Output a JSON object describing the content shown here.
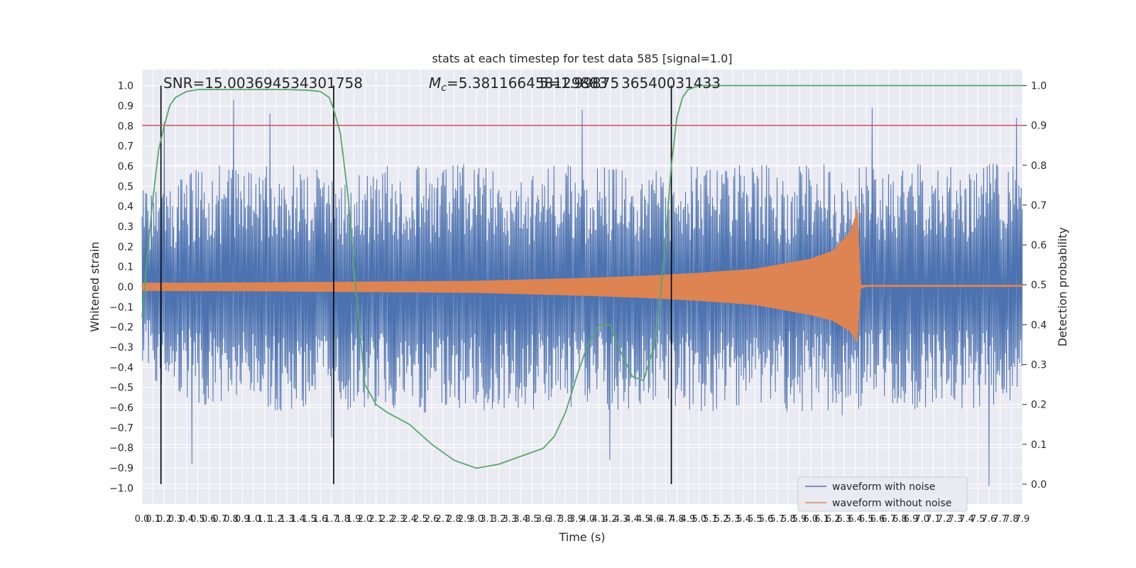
{
  "chart_data": {
    "type": "line",
    "title": "stats at each timestep for test data 585 [signal=1.0]",
    "xlabel": "Time (s)",
    "ylabel": "Whitened strain",
    "ylabel_right": "Detection probability",
    "xlim": [
      0.0,
      7.9
    ],
    "ylim": [
      -1.08,
      1.08
    ],
    "ylim_right": [
      -0.05,
      1.04
    ],
    "x_ticks": [
      0.0,
      0.1,
      0.2,
      0.3,
      0.4,
      0.5,
      0.6,
      0.7,
      0.8,
      0.9,
      1.0,
      1.1,
      1.2,
      1.3,
      1.4,
      1.5,
      1.6,
      1.7,
      1.8,
      1.9,
      2.0,
      2.1,
      2.2,
      2.3,
      2.4,
      2.5,
      2.6,
      2.7,
      2.8,
      2.9,
      3.0,
      3.1,
      3.2,
      3.3,
      3.4,
      3.5,
      3.6,
      3.7,
      3.8,
      3.9,
      4.0,
      4.1,
      4.2,
      4.3,
      4.4,
      4.5,
      4.6,
      4.7,
      4.8,
      4.9,
      5.0,
      5.1,
      5.2,
      5.3,
      5.4,
      5.5,
      5.6,
      5.7,
      5.8,
      5.9,
      6.0,
      6.1,
      6.2,
      6.3,
      6.4,
      6.5,
      6.6,
      6.7,
      6.8,
      6.9,
      7.0,
      7.1,
      7.2,
      7.3,
      7.4,
      7.5,
      7.6,
      7.7,
      7.8,
      7.9
    ],
    "y_ticks": [
      -1.0,
      -0.9,
      -0.8,
      -0.7,
      -0.6,
      -0.5,
      -0.4,
      -0.3,
      -0.2,
      -0.1,
      0.0,
      0.1,
      0.2,
      0.3,
      0.4,
      0.5,
      0.6,
      0.7,
      0.8,
      0.9,
      1.0
    ],
    "y_ticks_right": [
      0.0,
      0.1,
      0.2,
      0.3,
      0.4,
      0.5,
      0.6,
      0.7,
      0.8,
      0.9,
      1.0
    ],
    "grid": true,
    "legend_position": "bottom-right",
    "annotations": {
      "snr": "SNR=15.003694534301758",
      "mc": "M_c=5.381166458129883",
      "third": "5=1.99875",
      "fourth": "36540031433"
    },
    "threshold_line": {
      "y_right": 0.9,
      "color": "#c44e52"
    },
    "vertical_lines": [
      0.17,
      1.72,
      4.75
    ],
    "series": [
      {
        "name": "waveform with noise",
        "color": "#4c72b0",
        "envelope_x": [
          0.0,
          0.3,
          0.6,
          0.9,
          1.2,
          1.5,
          1.8,
          2.1,
          2.4,
          2.7,
          3.0,
          3.3,
          3.6,
          3.9,
          4.2,
          4.5,
          4.8,
          5.1,
          5.4,
          5.7,
          6.0,
          6.3,
          6.6,
          6.9,
          7.2,
          7.5,
          7.9
        ],
        "envelope_upper": [
          0.5,
          0.55,
          0.62,
          0.6,
          0.6,
          0.62,
          0.55,
          0.6,
          0.62,
          0.6,
          0.62,
          0.58,
          0.6,
          0.62,
          0.6,
          0.62,
          0.6,
          0.62,
          0.62,
          0.6,
          0.62,
          0.62,
          0.6,
          0.62,
          0.6,
          0.62,
          0.62
        ],
        "envelope_lower": [
          -0.45,
          -0.55,
          -0.6,
          -0.6,
          -0.62,
          -0.6,
          -0.62,
          -0.6,
          -0.65,
          -0.6,
          -0.62,
          -0.6,
          -0.62,
          -0.6,
          -0.62,
          -0.6,
          -0.62,
          -0.62,
          -0.6,
          -0.62,
          -0.62,
          -0.65,
          -0.6,
          -0.62,
          -0.6,
          -0.62,
          -0.6
        ],
        "peaks": [
          {
            "x": 0.2,
            "y": 0.82
          },
          {
            "x": 0.25,
            "y": 0.84
          },
          {
            "x": 0.82,
            "y": 0.93
          },
          {
            "x": 1.15,
            "y": 0.86
          },
          {
            "x": 1.68,
            "y": 0.81
          },
          {
            "x": 3.42,
            "y": 0.94
          },
          {
            "x": 3.95,
            "y": 0.88
          },
          {
            "x": 4.65,
            "y": 0.88
          },
          {
            "x": 5.0,
            "y": 0.98
          },
          {
            "x": 6.4,
            "y": 0.86
          },
          {
            "x": 6.55,
            "y": 0.89
          },
          {
            "x": 7.85,
            "y": 0.84
          },
          {
            "x": 0.4,
            "y": -0.88
          },
          {
            "x": 0.45,
            "y": -0.88
          },
          {
            "x": 1.2,
            "y": -0.8
          },
          {
            "x": 1.7,
            "y": -0.75
          },
          {
            "x": 3.55,
            "y": -0.8
          },
          {
            "x": 4.2,
            "y": -0.86
          },
          {
            "x": 4.9,
            "y": -0.86
          },
          {
            "x": 6.3,
            "y": -0.92
          },
          {
            "x": 7.6,
            "y": -0.99
          }
        ]
      },
      {
        "name": "waveform without noise",
        "color": "#dd8452",
        "envelope_x": [
          0.0,
          1.0,
          2.0,
          3.0,
          4.0,
          4.5,
          5.0,
          5.5,
          6.0,
          6.2,
          6.35,
          6.4,
          6.42,
          6.45,
          6.5,
          7.0,
          7.9
        ],
        "envelope_upper": [
          0.02,
          0.022,
          0.026,
          0.03,
          0.045,
          0.055,
          0.07,
          0.09,
          0.14,
          0.18,
          0.27,
          0.35,
          0.41,
          0.01,
          0.01,
          0.01,
          0.01
        ],
        "envelope_lower": [
          -0.02,
          -0.022,
          -0.026,
          -0.03,
          -0.045,
          -0.055,
          -0.07,
          -0.09,
          -0.14,
          -0.17,
          -0.22,
          -0.26,
          -0.28,
          -0.01,
          0.0,
          0.0,
          0.0
        ]
      },
      {
        "name": "detection probability",
        "axis": "right",
        "color": "#55a868",
        "x": [
          0.0,
          0.05,
          0.1,
          0.15,
          0.2,
          0.25,
          0.3,
          0.4,
          0.5,
          0.7,
          1.0,
          1.3,
          1.5,
          1.6,
          1.68,
          1.72,
          1.78,
          1.85,
          1.9,
          2.0,
          2.1,
          2.2,
          2.4,
          2.6,
          2.8,
          3.0,
          3.2,
          3.4,
          3.6,
          3.7,
          3.8,
          3.9,
          4.0,
          4.1,
          4.2,
          4.3,
          4.4,
          4.5,
          4.6,
          4.65,
          4.7,
          4.75,
          4.8,
          4.85,
          4.9,
          5.0,
          5.1,
          6.0,
          7.0,
          7.9
        ],
        "y": [
          0.42,
          0.58,
          0.72,
          0.84,
          0.9,
          0.95,
          0.97,
          0.985,
          0.99,
          0.99,
          0.99,
          0.99,
          0.988,
          0.985,
          0.97,
          0.94,
          0.88,
          0.72,
          0.55,
          0.25,
          0.2,
          0.18,
          0.15,
          0.1,
          0.06,
          0.04,
          0.05,
          0.07,
          0.09,
          0.12,
          0.18,
          0.27,
          0.35,
          0.4,
          0.4,
          0.33,
          0.27,
          0.26,
          0.35,
          0.47,
          0.62,
          0.8,
          0.92,
          0.97,
          0.99,
          1.0,
          1.0,
          1.0,
          1.0,
          1.0
        ]
      }
    ]
  }
}
